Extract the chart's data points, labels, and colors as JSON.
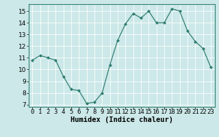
{
  "x": [
    0,
    1,
    2,
    3,
    4,
    5,
    6,
    7,
    8,
    9,
    10,
    11,
    12,
    13,
    14,
    15,
    16,
    17,
    18,
    19,
    20,
    21,
    22,
    23
  ],
  "y": [
    10.8,
    11.2,
    11.0,
    10.8,
    9.4,
    8.3,
    8.2,
    7.1,
    7.2,
    8.0,
    10.4,
    12.5,
    13.9,
    14.8,
    14.4,
    15.0,
    14.0,
    14.0,
    15.2,
    15.0,
    13.3,
    12.4,
    11.8,
    10.2
  ],
  "line_color": "#2e7d6e",
  "marker_color": "#2e7d6e",
  "bg_color": "#cce8e8",
  "grid_color": "#ffffff",
  "xlabel": "Humidex (Indice chaleur)",
  "ylim": [
    6.8,
    15.6
  ],
  "xlim": [
    -0.5,
    23.5
  ],
  "yticks": [
    7,
    8,
    9,
    10,
    11,
    12,
    13,
    14,
    15
  ],
  "xtick_labels": [
    "0",
    "1",
    "2",
    "3",
    "4",
    "5",
    "6",
    "7",
    "8",
    "9",
    "10",
    "11",
    "12",
    "13",
    "14",
    "15",
    "16",
    "17",
    "18",
    "19",
    "20",
    "21",
    "22",
    "23"
  ],
  "xlabel_fontsize": 7.5,
  "tick_fontsize": 6.5
}
